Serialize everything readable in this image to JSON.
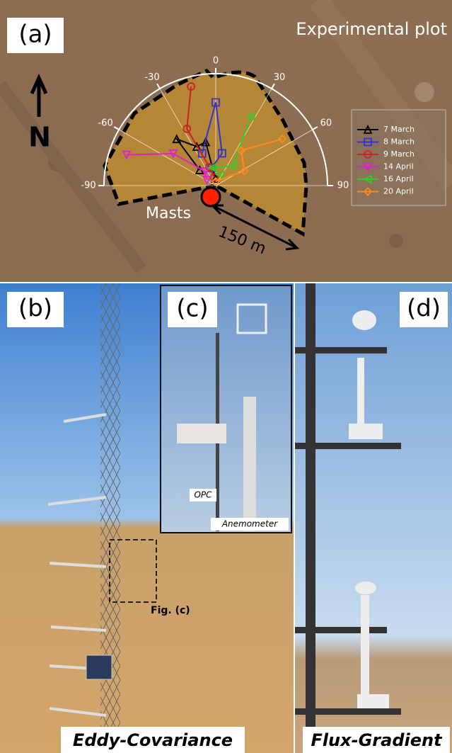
{
  "panels": {
    "a": {
      "label": "(a)",
      "title": "Experimental plot",
      "north": "N",
      "masts": "Masts",
      "distance": "150 m"
    },
    "b": {
      "label": "(b)",
      "caption": "Eddy-Covariance",
      "callout": "Fig. (c)"
    },
    "c": {
      "label": "(c)",
      "opc": "OPC",
      "anemometer": "Anemometer"
    },
    "d": {
      "label": "(d)",
      "caption": "Flux-Gradient"
    }
  },
  "chart_data": {
    "type": "polar",
    "rlim": [
      0,
      160
    ],
    "thetaticks": [
      -90,
      -60,
      -30,
      0,
      30,
      60,
      90
    ],
    "series": [
      {
        "name": "7 March",
        "color": "#000000",
        "marker": "triangle",
        "values": [
          [
            -46,
            32
          ],
          [
            -40,
            87
          ],
          [
            -26,
            62
          ],
          [
            -13,
            64
          ],
          [
            -3,
            10
          ]
        ]
      },
      {
        "name": "8 March",
        "color": "#3333cc",
        "marker": "square",
        "values": [
          [
            -23,
            50
          ],
          [
            0,
            119
          ],
          [
            11,
            47
          ],
          [
            -13,
            26
          ]
        ]
      },
      {
        "name": "9 March",
        "color": "#cc2222",
        "marker": "circle",
        "values": [
          [
            -14,
            146
          ],
          [
            -27,
            91
          ],
          [
            -19,
            28
          ],
          [
            -10,
            12
          ]
        ]
      },
      {
        "name": "14 April",
        "color": "#e020d0",
        "marker": "triangle-down",
        "values": [
          [
            -71,
            135
          ],
          [
            -53,
            76
          ],
          [
            -37,
            25
          ],
          [
            -58,
            15
          ]
        ]
      },
      {
        "name": "16 April",
        "color": "#33cc22",
        "marker": "triangle-left",
        "values": [
          [
            27,
            111
          ],
          [
            41,
            37
          ],
          [
            -11,
            26
          ],
          [
            21,
            17
          ]
        ]
      },
      {
        "name": "20 April",
        "color": "#ff8c1a",
        "marker": "diamond",
        "values": [
          [
            55,
            116
          ],
          [
            36,
            62
          ],
          [
            63,
            46
          ],
          [
            0,
            6
          ]
        ]
      }
    ]
  }
}
